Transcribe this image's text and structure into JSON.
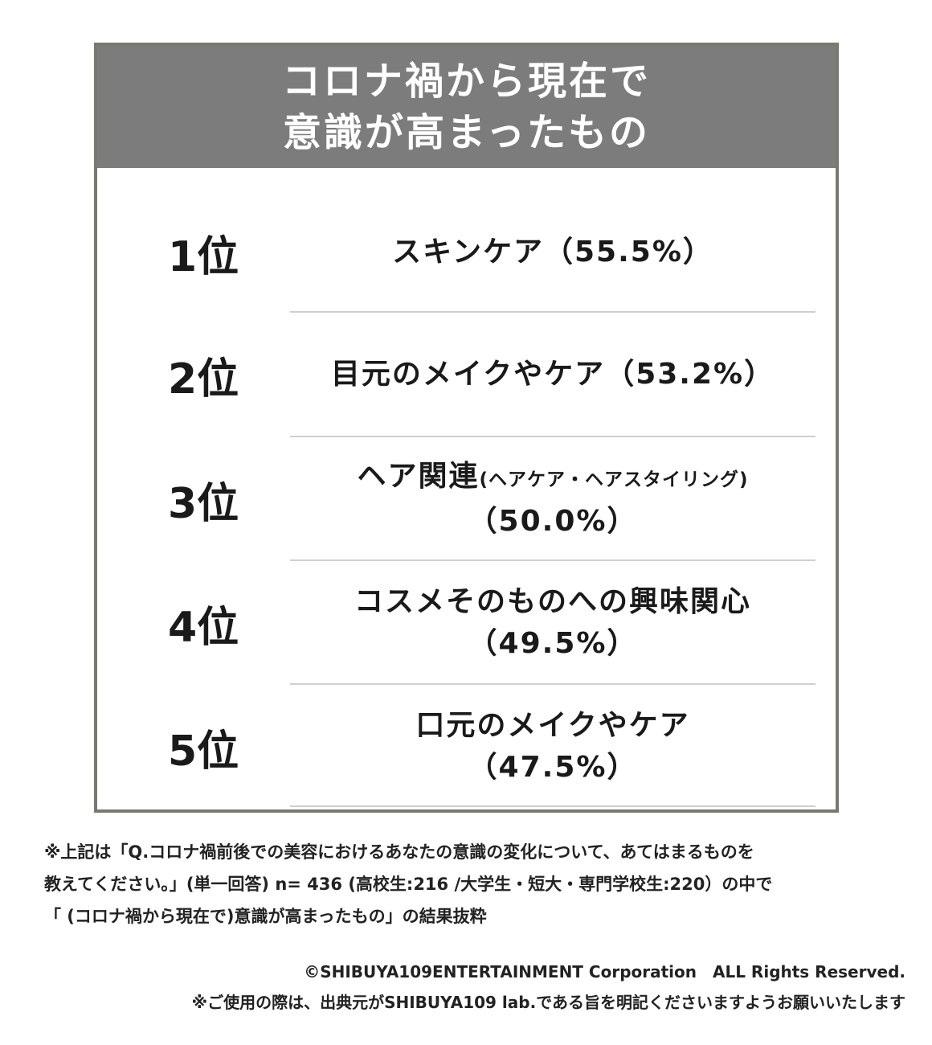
{
  "header": {
    "title_line1": "コロナ禍から現在で",
    "title_line2": "意識が高まったもの"
  },
  "chart_data": {
    "type": "table",
    "title": "コロナ禍から現在で意識が高まったもの",
    "unit": "%",
    "rows": [
      {
        "rank": "1位",
        "item": "スキンケア",
        "item_sub": "",
        "value": 55.5,
        "value_label": "（55.5%）"
      },
      {
        "rank": "2位",
        "item": "目元のメイクやケア",
        "item_sub": "",
        "value": 53.2,
        "value_label": "（53.2%）"
      },
      {
        "rank": "3位",
        "item": "ヘア関連",
        "item_sub": "(ヘアケア・ヘアスタイリング)",
        "value": 50.0,
        "value_label": "（50.0%）"
      },
      {
        "rank": "4位",
        "item": "コスメそのものへの興味関心",
        "item_sub": "",
        "value": 49.5,
        "value_label": "（49.5%）"
      },
      {
        "rank": "5位",
        "item": "口元のメイクやケア",
        "item_sub": "",
        "value": 47.5,
        "value_label": "（47.5%）"
      }
    ]
  },
  "footnote": {
    "line1": "※上記は「Q.コロナ禍前後での美容におけるあなたの意識の変化について、あてはまるものを",
    "line2": "教えてください。」(単一回答) n= 436 (高校生:216 /大学生・短大・専門学校生:220）の中で",
    "line3": "「 (コロナ禍から現在で)意識が高まったもの」の結果抜粋"
  },
  "copyright": {
    "line1": "©SHIBUYA109ENTERTAINMENT Corporation　ALL Rights Reserved.",
    "line2": "※ご使用の際は、出典元がSHIBUYA109 lab.である旨を明記くださいますようお願いいたします"
  }
}
